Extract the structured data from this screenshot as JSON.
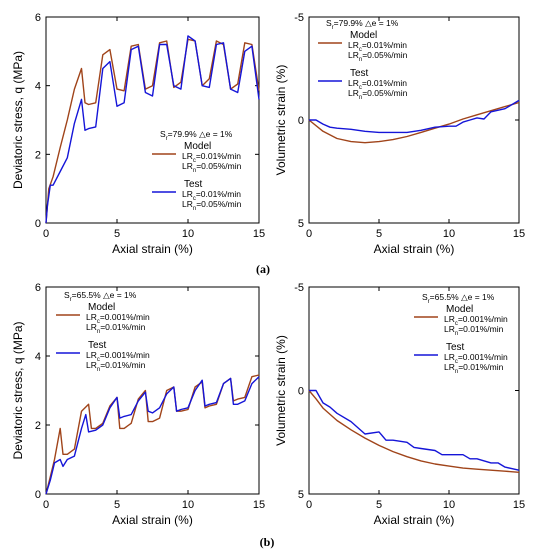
{
  "panel_labels": [
    "(a)",
    "(b)"
  ],
  "colors": {
    "model": "#a0441a",
    "test": "#1515d8"
  },
  "chart_data": [
    {
      "id": "a-left",
      "type": "line",
      "xlabel": "Axial strain (%)",
      "ylabel": "Deviatoric stress, q (MPa)",
      "xlim": [
        0,
        15
      ],
      "ylim": [
        0,
        6
      ],
      "xticks": [
        0,
        5,
        10,
        15
      ],
      "yticks": [
        0,
        2,
        4,
        6
      ],
      "yreversed": false,
      "legend": {
        "placement": "right-middle",
        "condition": "S_r=79.9% △e = 1%",
        "groups": [
          {
            "name": "Model",
            "lines": [
              "LR_c=0.01%/min",
              "LR_n=0.05%/min"
            ],
            "color_key": "model"
          },
          {
            "name": "Test",
            "lines": [
              "LR_c=0.01%/min",
              "LR_n=0.05%/min"
            ],
            "color_key": "test"
          }
        ]
      },
      "series": [
        {
          "name": "Model",
          "color_key": "model",
          "x": [
            0,
            0.2,
            0.5,
            1,
            1.5,
            2,
            2.5,
            2.75,
            3,
            3.5,
            4,
            4.5,
            5,
            5.5,
            6,
            6.5,
            7,
            7.5,
            8,
            8.5,
            9,
            9.5,
            10,
            10.5,
            11,
            11.5,
            12,
            12.5,
            13,
            13.5,
            14,
            14.5,
            15
          ],
          "y": [
            0,
            1,
            1.35,
            2.2,
            3.0,
            3.9,
            4.5,
            3.5,
            3.45,
            3.5,
            4.9,
            5.05,
            3.9,
            3.85,
            5.15,
            5.2,
            3.9,
            4.0,
            5.25,
            5.3,
            3.95,
            4.1,
            5.35,
            5.3,
            4.0,
            4.2,
            5.3,
            5.2,
            3.9,
            4.05,
            5.25,
            5.2,
            3.85
          ]
        },
        {
          "name": "Test",
          "color_key": "test",
          "x": [
            0,
            0.1,
            0.3,
            0.5,
            1,
            1.5,
            2,
            2.5,
            2.75,
            3,
            3.5,
            4,
            4.5,
            5,
            5.5,
            6,
            6.5,
            7,
            7.5,
            8,
            8.5,
            9,
            9.5,
            10,
            10.5,
            11,
            11.5,
            12,
            12.5,
            13,
            13.5,
            14,
            14.5,
            15
          ],
          "y": [
            0,
            0.5,
            1.1,
            1.1,
            1.5,
            1.9,
            2.9,
            3.6,
            2.7,
            2.75,
            2.8,
            4.5,
            4.7,
            3.4,
            3.5,
            5.05,
            5.15,
            3.8,
            3.7,
            5.2,
            5.2,
            4.0,
            3.9,
            5.45,
            5.3,
            4.0,
            3.95,
            5.2,
            5.25,
            3.9,
            3.8,
            5.0,
            5.15,
            3.6
          ]
        }
      ]
    },
    {
      "id": "a-right",
      "type": "line",
      "xlabel": "Axial strain (%)",
      "ylabel": "Volumetric strain (%)",
      "xlim": [
        0,
        15
      ],
      "ylim": [
        -5,
        5
      ],
      "xticks": [
        0,
        5,
        10,
        15
      ],
      "yticks": [
        -5,
        0,
        5
      ],
      "yreversed": true,
      "legend": {
        "placement": "top-left",
        "condition": "S_r=79.9% △e = 1%",
        "groups": [
          {
            "name": "Model",
            "lines": [
              "LR_c=0.01%/min",
              "LR_n=0.05%/min"
            ],
            "color_key": "model"
          },
          {
            "name": "Test",
            "lines": [
              "LR_c=0.01%/min",
              "LR_n=0.05%/min"
            ],
            "color_key": "test"
          }
        ]
      },
      "series": [
        {
          "name": "Model",
          "color_key": "model",
          "x": [
            0,
            1,
            2,
            3,
            4,
            5,
            6,
            7,
            8,
            9,
            10,
            11,
            12,
            13,
            14,
            15
          ],
          "y": [
            0,
            0.55,
            0.9,
            1.05,
            1.1,
            1.05,
            0.95,
            0.8,
            0.6,
            0.4,
            0.2,
            -0.05,
            -0.25,
            -0.45,
            -0.65,
            -0.85
          ]
        },
        {
          "name": "Test",
          "color_key": "test",
          "x": [
            0,
            0.5,
            1,
            1.5,
            2,
            3,
            4,
            5,
            6,
            7,
            8,
            9,
            10,
            10.5,
            11,
            11.5,
            12,
            12.5,
            13,
            14,
            15
          ],
          "y": [
            0,
            0,
            0.2,
            0.35,
            0.4,
            0.45,
            0.55,
            0.6,
            0.6,
            0.6,
            0.5,
            0.35,
            0.3,
            0.3,
            0.1,
            0,
            -0.1,
            -0.05,
            -0.4,
            -0.55,
            -0.95
          ]
        }
      ]
    },
    {
      "id": "b-left",
      "type": "line",
      "xlabel": "Axial strain (%)",
      "ylabel": "Deviatoric stress, q (MPa)",
      "xlim": [
        0,
        15
      ],
      "ylim": [
        0,
        6
      ],
      "xticks": [
        0,
        5,
        10,
        15
      ],
      "yticks": [
        0,
        2,
        4,
        6
      ],
      "yreversed": false,
      "legend": {
        "placement": "top-left",
        "condition": "S_r=65.5% △e = 1%",
        "groups": [
          {
            "name": "Model",
            "lines": [
              "LR_c=0.001%/min",
              "LR_n=0.01%/min"
            ],
            "color_key": "model"
          },
          {
            "name": "Test",
            "lines": [
              "LR_c=0.001%/min",
              "LR_n=0.01%/min"
            ],
            "color_key": "test"
          }
        ]
      },
      "series": [
        {
          "name": "Model",
          "color_key": "model",
          "x": [
            0,
            0.3,
            0.6,
            1,
            1.2,
            1.5,
            2,
            2.5,
            3,
            3.2,
            3.5,
            4,
            4.5,
            5,
            5.2,
            5.5,
            6,
            6.5,
            7,
            7.2,
            7.5,
            8,
            8.5,
            9,
            9.2,
            9.5,
            10,
            10.5,
            11,
            11.2,
            11.5,
            12,
            12.5,
            13,
            13.2,
            13.5,
            14,
            14.5,
            15
          ],
          "y": [
            0,
            0.5,
            1.0,
            1.9,
            1.15,
            1.15,
            1.3,
            2.4,
            2.6,
            1.9,
            1.9,
            2.05,
            2.55,
            2.8,
            1.9,
            1.9,
            2.05,
            2.75,
            3.0,
            2.1,
            2.1,
            2.2,
            3.0,
            3.1,
            2.4,
            2.4,
            2.45,
            3.1,
            3.25,
            2.5,
            2.55,
            2.6,
            3.2,
            3.35,
            2.7,
            2.75,
            2.8,
            3.4,
            3.45
          ]
        },
        {
          "name": "Test",
          "color_key": "test",
          "x": [
            0,
            0.3,
            0.6,
            1,
            1.2,
            1.5,
            2,
            2.5,
            2.8,
            3,
            3.5,
            4,
            4.5,
            5,
            5.2,
            5.5,
            6,
            6.5,
            7,
            7.2,
            7.5,
            8,
            8.5,
            9,
            9.2,
            9.5,
            10,
            10.5,
            11,
            11.2,
            11.5,
            12,
            12.5,
            13,
            13.2,
            13.5,
            14,
            14.5,
            15
          ],
          "y": [
            0,
            0.4,
            0.9,
            1.0,
            0.8,
            1.0,
            1.1,
            1.9,
            2.3,
            1.8,
            1.85,
            2.0,
            2.5,
            2.8,
            2.2,
            2.25,
            2.3,
            2.7,
            2.95,
            2.4,
            2.35,
            2.5,
            2.9,
            3.1,
            2.4,
            2.45,
            2.5,
            3.0,
            3.3,
            2.55,
            2.6,
            2.65,
            3.2,
            3.35,
            2.6,
            2.6,
            2.7,
            3.2,
            3.4
          ]
        }
      ]
    },
    {
      "id": "b-right",
      "type": "line",
      "xlabel": "Axial strain (%)",
      "ylabel": "Volumetric strain (%)",
      "xlim": [
        0,
        15
      ],
      "ylim": [
        -5,
        5
      ],
      "xticks": [
        0,
        5,
        10,
        15
      ],
      "yticks": [
        -5,
        0,
        5
      ],
      "yreversed": true,
      "legend": {
        "placement": "top-right",
        "condition": "S_r=65.5% △e = 1%",
        "groups": [
          {
            "name": "Model",
            "lines": [
              "LR_c=0.001%/min",
              "LR_n=0.01%/min"
            ],
            "color_key": "model"
          },
          {
            "name": "Test",
            "lines": [
              "LR_c=0.001%/min",
              "LR_n=0.01%/min"
            ],
            "color_key": "test"
          }
        ]
      },
      "series": [
        {
          "name": "Model",
          "color_key": "model",
          "x": [
            0,
            0.5,
            1,
            2,
            3,
            4,
            5,
            6,
            7,
            8,
            9,
            10,
            11,
            12,
            13,
            14,
            15
          ],
          "y": [
            0,
            0.4,
            0.85,
            1.45,
            1.9,
            2.3,
            2.65,
            2.95,
            3.2,
            3.4,
            3.55,
            3.65,
            3.75,
            3.8,
            3.85,
            3.9,
            3.95
          ]
        },
        {
          "name": "Test",
          "color_key": "test",
          "x": [
            0,
            0.5,
            1,
            1.5,
            2,
            3,
            4,
            5,
            5.5,
            6,
            7,
            7.5,
            8,
            9,
            9.5,
            10,
            11,
            11.5,
            12,
            13,
            13.5,
            14,
            15
          ],
          "y": [
            0,
            0,
            0.6,
            0.8,
            1.1,
            1.5,
            2.1,
            2.0,
            2.4,
            2.4,
            2.5,
            2.75,
            2.8,
            2.9,
            3.1,
            3.1,
            3.1,
            3.3,
            3.3,
            3.5,
            3.5,
            3.7,
            3.85
          ]
        }
      ]
    }
  ]
}
